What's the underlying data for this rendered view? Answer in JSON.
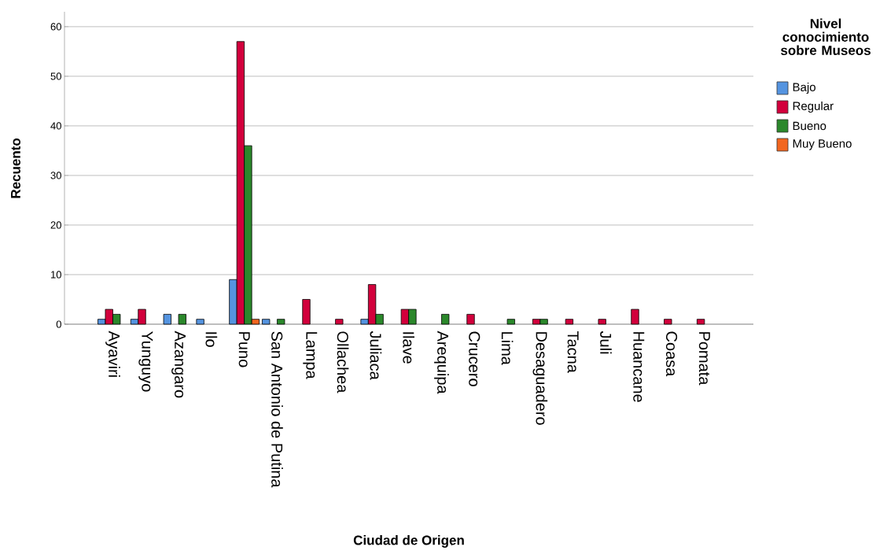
{
  "chart_data": {
    "type": "bar",
    "xlabel": "Ciudad de Origen",
    "ylabel": "Recuento",
    "legend_title": "Nivel conocimiento sobre Museos",
    "categories": [
      "Ayaviri",
      "Yunguyo",
      "Azangaro",
      "Ilo",
      "Puno",
      "San Antonio de Putina",
      "Lampa",
      "Ollachea",
      "Juliaca",
      "Ilave",
      "Arequipa",
      "Crucero",
      "Lima",
      "Desaguadero",
      "Tacna",
      "Juli",
      "Huancane",
      "Coasa",
      "Pomata"
    ],
    "series": [
      {
        "name": "Bajo",
        "color": "#5594e0",
        "values": [
          1,
          1,
          2,
          1,
          9,
          1,
          null,
          null,
          1,
          null,
          null,
          null,
          null,
          null,
          null,
          null,
          null,
          null,
          null
        ]
      },
      {
        "name": "Regular",
        "color": "#d2003c",
        "values": [
          3,
          3,
          null,
          null,
          57,
          null,
          5,
          1,
          8,
          3,
          null,
          2,
          null,
          1,
          1,
          1,
          3,
          1,
          1
        ]
      },
      {
        "name": "Bueno",
        "color": "#2b882b",
        "values": [
          2,
          null,
          2,
          null,
          36,
          1,
          null,
          null,
          2,
          3,
          2,
          null,
          1,
          1,
          null,
          null,
          null,
          null,
          null
        ]
      },
      {
        "name": "Muy Bueno",
        "color": "#f2661f",
        "values": [
          null,
          null,
          null,
          null,
          1,
          null,
          null,
          null,
          null,
          null,
          null,
          null,
          null,
          null,
          null,
          null,
          null,
          null,
          null
        ]
      }
    ],
    "ylim": [
      0,
      63
    ],
    "yticks": [
      0,
      10,
      20,
      30,
      40,
      50,
      60
    ],
    "grid": "y",
    "legend": "right"
  }
}
